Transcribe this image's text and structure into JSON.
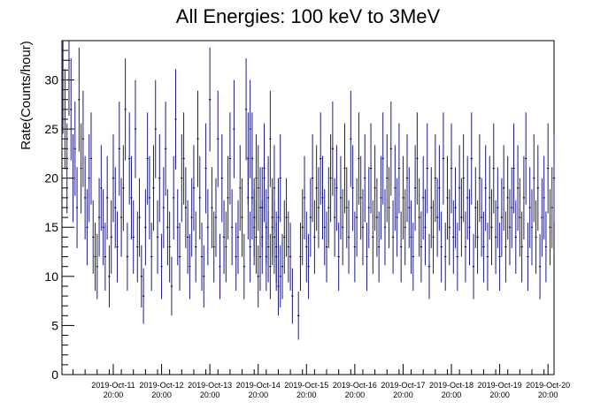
{
  "chart_data": {
    "type": "scatter",
    "title": "All Energies:  100 keV to 3MeV",
    "ylabel": "Rate(Counts/hour)",
    "xlabel": "",
    "ylim": [
      0,
      34
    ],
    "yticks": [
      0,
      5,
      10,
      15,
      20,
      25,
      30
    ],
    "xlim": [
      "2019-Oct-10 18:30",
      "2019-Oct-20 23:00"
    ],
    "xticks": [
      {
        "date": "2019-Oct-11",
        "time": "20:00"
      },
      {
        "date": "2019-Oct-12",
        "time": "20:00"
      },
      {
        "date": "2019-Oct-13",
        "time": "20:00"
      },
      {
        "date": "2019-Oct-14",
        "time": "20:00"
      },
      {
        "date": "2019-Oct-15",
        "time": "20:00"
      },
      {
        "date": "2019-Oct-16",
        "time": "20:00"
      },
      {
        "date": "2019-Oct-17",
        "time": "20:00"
      },
      {
        "date": "2019-Oct-18",
        "time": "20:00"
      },
      {
        "date": "2019-Oct-19",
        "time": "20:00"
      },
      {
        "date": "2019-Oct-20",
        "time": "20:00"
      }
    ],
    "grid": false,
    "marker_color": "#1a1a80",
    "error_bars": "sqrt(N)",
    "series": [
      {
        "segments": [
          {
            "start": "2019-Oct-10 19:00",
            "step_hours": 1,
            "values": [
              30,
              26,
              21,
              32,
              27,
              20,
              23,
              17,
              28,
              21,
              24,
              18,
              15,
              20,
              22,
              14,
              12,
              11,
              16,
              19,
              15,
              12,
              18,
              10,
              14,
              20,
              17,
              13,
              23,
              16,
              19,
              27,
              12,
              22,
              18,
              14,
              25,
              13,
              16,
              10,
              8,
              15,
              22,
              18,
              12,
              19,
              25,
              14,
              20,
              11,
              17,
              23,
              15,
              13,
              9,
              18,
              26,
              15,
              12,
              20,
              22,
              17,
              14,
              11,
              16,
              19,
              13,
              24,
              18,
              12,
              10,
              21,
              15,
              28,
              17,
              13,
              16,
              24,
              11,
              20,
              14,
              13,
              18,
              22,
              15,
              25,
              12,
              14,
              19,
              16,
              11,
              27,
              18,
              13,
              22,
              15,
              20,
              10,
              17,
              14,
              21,
              12,
              18,
              24,
              15,
              19,
              13,
              16,
              20
            ]
          },
          {
            "start": "2019-Oct-14 15:00",
            "step_hours": 1,
            "values": [
              22,
              25,
              18,
              16,
              14,
              19,
              12,
              17,
              20,
              15,
              13,
              11,
              16,
              14,
              12,
              9,
              10,
              11,
              14,
              16,
              13,
              12,
              8
            ]
          },
          {
            "start": "2019-Oct-15 16:00",
            "step_hours": 1,
            "values": [
              6,
              12,
              15,
              18,
              13,
              11,
              16,
              20,
              14,
              19,
              17,
              22,
              18,
              15,
              13,
              17,
              20,
              23,
              16,
              19,
              12,
              18,
              15,
              21,
              17,
              14,
              24,
              19,
              13,
              16,
              22,
              18,
              15,
              20,
              12,
              17,
              21,
              14,
              19,
              16,
              13,
              18,
              22,
              15,
              20,
              17,
              23,
              14,
              19,
              16,
              21,
              13,
              18,
              15,
              20,
              17,
              14,
              12,
              19,
              22,
              16,
              13,
              18,
              15,
              21,
              11,
              17,
              14,
              20,
              16,
              19,
              13,
              22,
              12,
              18,
              15,
              21,
              14,
              17,
              12,
              19,
              16,
              20,
              13,
              18,
              15,
              22,
              11,
              17,
              14,
              20,
              16,
              13,
              19,
              12,
              18,
              15,
              21,
              14,
              17,
              12,
              16,
              19,
              13,
              18,
              15,
              17,
              21,
              14,
              19,
              16,
              13,
              18,
              22,
              12,
              17,
              15,
              20,
              14,
              19,
              11,
              16,
              18,
              13,
              21,
              15,
              17,
              20,
              14,
              18,
              16,
              19,
              15,
              17,
              13,
              20
            ]
          }
        ]
      }
    ]
  }
}
